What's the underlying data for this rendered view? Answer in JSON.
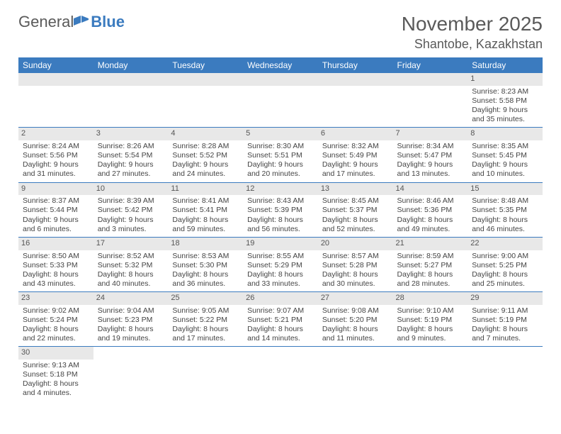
{
  "brand": {
    "part1": "General",
    "part2": "Blue"
  },
  "title": {
    "month": "November 2025",
    "location": "Shantobe, Kazakhstan"
  },
  "colors": {
    "header_bg": "#3b7bbf",
    "header_text": "#ffffff",
    "daynum_bg": "#e8e8e8",
    "rule": "#3b7bbf",
    "body_text": "#444444"
  },
  "weekdays": [
    "Sunday",
    "Monday",
    "Tuesday",
    "Wednesday",
    "Thursday",
    "Friday",
    "Saturday"
  ],
  "weeks": [
    [
      null,
      null,
      null,
      null,
      null,
      null,
      {
        "n": "1",
        "sr": "Sunrise: 8:23 AM",
        "ss": "Sunset: 5:58 PM",
        "dl": "Daylight: 9 hours and 35 minutes."
      }
    ],
    [
      {
        "n": "2",
        "sr": "Sunrise: 8:24 AM",
        "ss": "Sunset: 5:56 PM",
        "dl": "Daylight: 9 hours and 31 minutes."
      },
      {
        "n": "3",
        "sr": "Sunrise: 8:26 AM",
        "ss": "Sunset: 5:54 PM",
        "dl": "Daylight: 9 hours and 27 minutes."
      },
      {
        "n": "4",
        "sr": "Sunrise: 8:28 AM",
        "ss": "Sunset: 5:52 PM",
        "dl": "Daylight: 9 hours and 24 minutes."
      },
      {
        "n": "5",
        "sr": "Sunrise: 8:30 AM",
        "ss": "Sunset: 5:51 PM",
        "dl": "Daylight: 9 hours and 20 minutes."
      },
      {
        "n": "6",
        "sr": "Sunrise: 8:32 AM",
        "ss": "Sunset: 5:49 PM",
        "dl": "Daylight: 9 hours and 17 minutes."
      },
      {
        "n": "7",
        "sr": "Sunrise: 8:34 AM",
        "ss": "Sunset: 5:47 PM",
        "dl": "Daylight: 9 hours and 13 minutes."
      },
      {
        "n": "8",
        "sr": "Sunrise: 8:35 AM",
        "ss": "Sunset: 5:45 PM",
        "dl": "Daylight: 9 hours and 10 minutes."
      }
    ],
    [
      {
        "n": "9",
        "sr": "Sunrise: 8:37 AM",
        "ss": "Sunset: 5:44 PM",
        "dl": "Daylight: 9 hours and 6 minutes."
      },
      {
        "n": "10",
        "sr": "Sunrise: 8:39 AM",
        "ss": "Sunset: 5:42 PM",
        "dl": "Daylight: 9 hours and 3 minutes."
      },
      {
        "n": "11",
        "sr": "Sunrise: 8:41 AM",
        "ss": "Sunset: 5:41 PM",
        "dl": "Daylight: 8 hours and 59 minutes."
      },
      {
        "n": "12",
        "sr": "Sunrise: 8:43 AM",
        "ss": "Sunset: 5:39 PM",
        "dl": "Daylight: 8 hours and 56 minutes."
      },
      {
        "n": "13",
        "sr": "Sunrise: 8:45 AM",
        "ss": "Sunset: 5:37 PM",
        "dl": "Daylight: 8 hours and 52 minutes."
      },
      {
        "n": "14",
        "sr": "Sunrise: 8:46 AM",
        "ss": "Sunset: 5:36 PM",
        "dl": "Daylight: 8 hours and 49 minutes."
      },
      {
        "n": "15",
        "sr": "Sunrise: 8:48 AM",
        "ss": "Sunset: 5:35 PM",
        "dl": "Daylight: 8 hours and 46 minutes."
      }
    ],
    [
      {
        "n": "16",
        "sr": "Sunrise: 8:50 AM",
        "ss": "Sunset: 5:33 PM",
        "dl": "Daylight: 8 hours and 43 minutes."
      },
      {
        "n": "17",
        "sr": "Sunrise: 8:52 AM",
        "ss": "Sunset: 5:32 PM",
        "dl": "Daylight: 8 hours and 40 minutes."
      },
      {
        "n": "18",
        "sr": "Sunrise: 8:53 AM",
        "ss": "Sunset: 5:30 PM",
        "dl": "Daylight: 8 hours and 36 minutes."
      },
      {
        "n": "19",
        "sr": "Sunrise: 8:55 AM",
        "ss": "Sunset: 5:29 PM",
        "dl": "Daylight: 8 hours and 33 minutes."
      },
      {
        "n": "20",
        "sr": "Sunrise: 8:57 AM",
        "ss": "Sunset: 5:28 PM",
        "dl": "Daylight: 8 hours and 30 minutes."
      },
      {
        "n": "21",
        "sr": "Sunrise: 8:59 AM",
        "ss": "Sunset: 5:27 PM",
        "dl": "Daylight: 8 hours and 28 minutes."
      },
      {
        "n": "22",
        "sr": "Sunrise: 9:00 AM",
        "ss": "Sunset: 5:25 PM",
        "dl": "Daylight: 8 hours and 25 minutes."
      }
    ],
    [
      {
        "n": "23",
        "sr": "Sunrise: 9:02 AM",
        "ss": "Sunset: 5:24 PM",
        "dl": "Daylight: 8 hours and 22 minutes."
      },
      {
        "n": "24",
        "sr": "Sunrise: 9:04 AM",
        "ss": "Sunset: 5:23 PM",
        "dl": "Daylight: 8 hours and 19 minutes."
      },
      {
        "n": "25",
        "sr": "Sunrise: 9:05 AM",
        "ss": "Sunset: 5:22 PM",
        "dl": "Daylight: 8 hours and 17 minutes."
      },
      {
        "n": "26",
        "sr": "Sunrise: 9:07 AM",
        "ss": "Sunset: 5:21 PM",
        "dl": "Daylight: 8 hours and 14 minutes."
      },
      {
        "n": "27",
        "sr": "Sunrise: 9:08 AM",
        "ss": "Sunset: 5:20 PM",
        "dl": "Daylight: 8 hours and 11 minutes."
      },
      {
        "n": "28",
        "sr": "Sunrise: 9:10 AM",
        "ss": "Sunset: 5:19 PM",
        "dl": "Daylight: 8 hours and 9 minutes."
      },
      {
        "n": "29",
        "sr": "Sunrise: 9:11 AM",
        "ss": "Sunset: 5:19 PM",
        "dl": "Daylight: 8 hours and 7 minutes."
      }
    ],
    [
      {
        "n": "30",
        "sr": "Sunrise: 9:13 AM",
        "ss": "Sunset: 5:18 PM",
        "dl": "Daylight: 8 hours and 4 minutes."
      },
      null,
      null,
      null,
      null,
      null,
      null
    ]
  ]
}
